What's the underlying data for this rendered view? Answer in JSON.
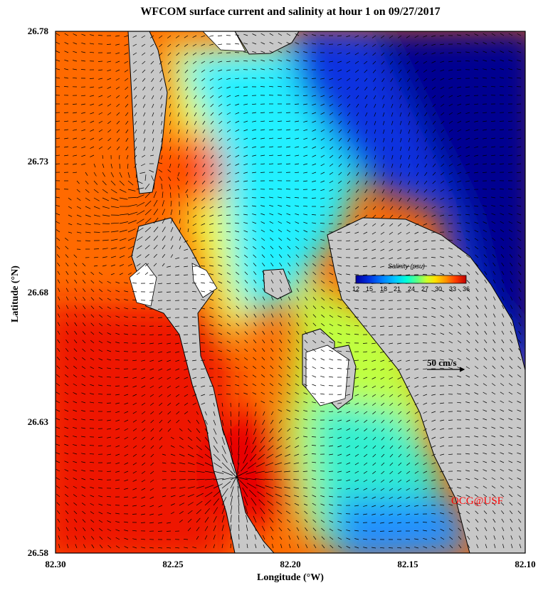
{
  "title": "WFCOM surface current and salinity at hour 1 on 09/27/2017",
  "axes": {
    "xlabel": "Longitude (°W)",
    "ylabel": "Latitude (°N)",
    "xticks": [
      "82.30",
      "82.25",
      "82.20",
      "82.15",
      "82.10"
    ],
    "yticks": [
      "26.78",
      "26.73",
      "26.68",
      "26.63",
      "26.58"
    ]
  },
  "colorbar": {
    "title": "Salinity (psu)",
    "ticks": [
      "12",
      "15",
      "18",
      "21",
      "24",
      "27",
      "30",
      "33",
      "36"
    ],
    "colors": [
      "#0000a0",
      "#0030e0",
      "#0080ff",
      "#00c8ff",
      "#00ffd8",
      "#60ff80",
      "#c8ff30",
      "#ffe000",
      "#ff9000",
      "#ff4000",
      "#e00000",
      "#a00000"
    ]
  },
  "scale_arrow_label": "50 cm/s",
  "credit": "OCG@USF",
  "colors": {
    "land": "#c8c8c8",
    "credit": "#ff0000"
  }
}
